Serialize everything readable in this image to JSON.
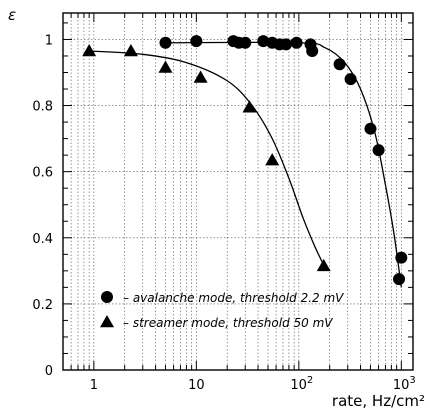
{
  "chart_data": {
    "type": "scatter",
    "xscale": "log",
    "xlim": [
      0.5,
      1300
    ],
    "ylim": [
      0,
      1.08
    ],
    "grid": true,
    "xlabel": "rate, Hz/cm²",
    "ylabel": "ε",
    "x_ticks": [
      {
        "value": 1,
        "base": "1",
        "exp": ""
      },
      {
        "value": 10,
        "base": "10",
        "exp": ""
      },
      {
        "value": 100,
        "base": "10",
        "exp": "2"
      },
      {
        "value": 1000,
        "base": "10",
        "exp": "3"
      }
    ],
    "y_ticks": [
      0,
      0.2,
      0.4,
      0.6,
      0.8,
      1
    ],
    "y_tick_labels": [
      "0",
      "0.2",
      "0.4",
      "0.6",
      "0.8",
      "1"
    ],
    "legend_position": "bottom-left",
    "series": [
      {
        "name": "– avalanche mode, threshold 2.2 mV",
        "marker": "circle",
        "points": [
          [
            5,
            0.99
          ],
          [
            10,
            0.995
          ],
          [
            23,
            0.995
          ],
          [
            26,
            0.99
          ],
          [
            30,
            0.99
          ],
          [
            45,
            0.995
          ],
          [
            55,
            0.99
          ],
          [
            65,
            0.985
          ],
          [
            75,
            0.985
          ],
          [
            95,
            0.99
          ],
          [
            130,
            0.985
          ],
          [
            135,
            0.965
          ],
          [
            250,
            0.925
          ],
          [
            320,
            0.88
          ],
          [
            500,
            0.73
          ],
          [
            600,
            0.665
          ],
          [
            950,
            0.275
          ],
          [
            1000,
            0.34
          ]
        ],
        "curve": [
          [
            5,
            0.99
          ],
          [
            100,
            0.99
          ],
          [
            180,
            0.975
          ],
          [
            280,
            0.93
          ],
          [
            400,
            0.85
          ],
          [
            550,
            0.72
          ],
          [
            700,
            0.56
          ],
          [
            850,
            0.41
          ],
          [
            1000,
            0.25
          ]
        ]
      },
      {
        "name": "– streamer mode, threshold 50 mV",
        "marker": "triangle",
        "points": [
          [
            0.9,
            0.965
          ],
          [
            2.3,
            0.965
          ],
          [
            5,
            0.915
          ],
          [
            11,
            0.885
          ],
          [
            33,
            0.795
          ],
          [
            55,
            0.635
          ],
          [
            175,
            0.315
          ]
        ],
        "curve": [
          [
            0.9,
            0.965
          ],
          [
            3,
            0.955
          ],
          [
            8,
            0.93
          ],
          [
            20,
            0.875
          ],
          [
            35,
            0.8
          ],
          [
            55,
            0.7
          ],
          [
            80,
            0.58
          ],
          [
            110,
            0.46
          ],
          [
            145,
            0.37
          ],
          [
            180,
            0.31
          ]
        ]
      }
    ]
  }
}
